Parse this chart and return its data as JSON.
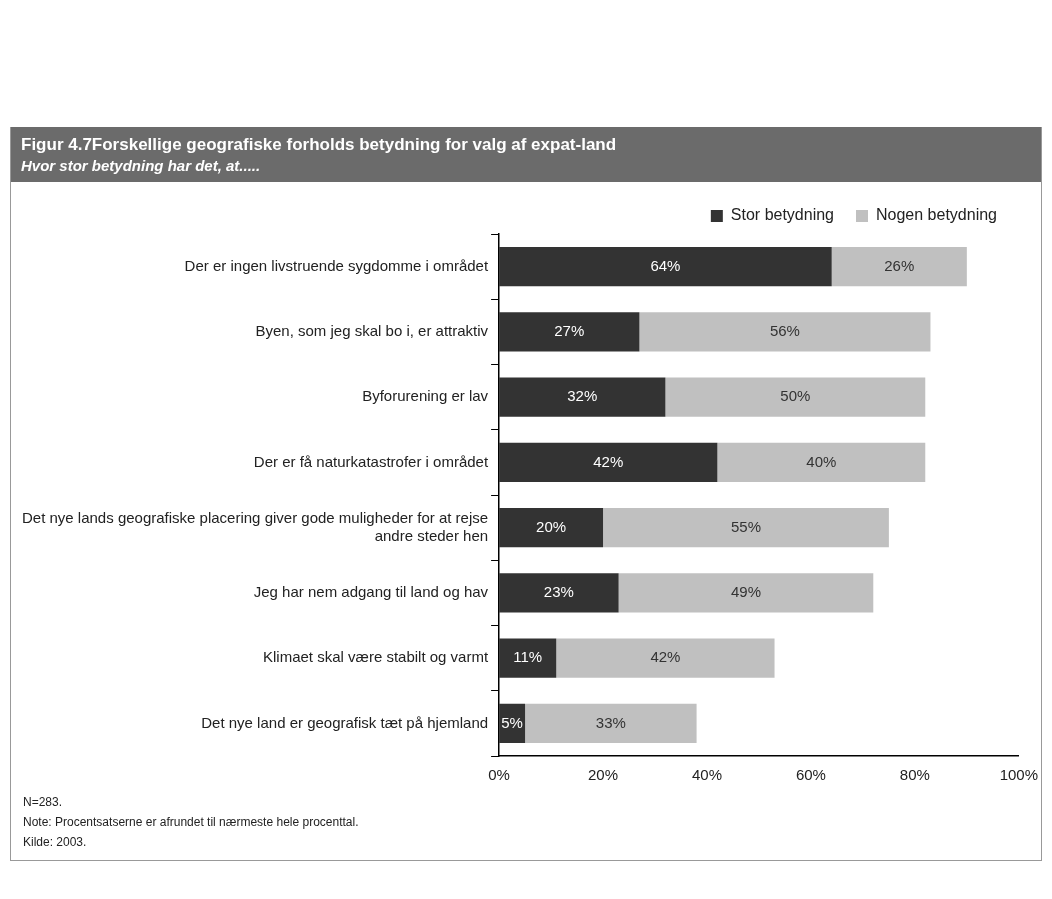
{
  "chart_data": {
    "type": "bar",
    "orientation": "horizontal",
    "stacked": true,
    "title": "Figur 4.7Forskellige geografiske forholds betydning for valg af expat-land",
    "subtitle": "Hvor stor betydning har det, at.....",
    "categories": [
      "Der er ingen livstruende sygdomme i området",
      "Byen, som jeg skal bo i, er attraktiv",
      "Byforurening er lav",
      "Der er få naturkatastrofer i området",
      "Det nye lands geografiske placering giver gode muligheder for at rejse andre steder hen",
      "Jeg har nem adgang til land og hav",
      "Klimaet skal være stabilt og varmt",
      "Det nye land er geografisk tæt på hjemland"
    ],
    "series": [
      {
        "name": "Stor betydning",
        "color": "#333333",
        "values": [
          64,
          27,
          32,
          42,
          20,
          23,
          11,
          5
        ],
        "value_labels": [
          "64%",
          "27%",
          "32%",
          "42%",
          "20%",
          "23%",
          "11%",
          "5%"
        ]
      },
      {
        "name": "Nogen betydning",
        "color": "#c0c0c0",
        "values": [
          26,
          56,
          50,
          40,
          55,
          49,
          42,
          33
        ],
        "value_labels": [
          "26%",
          "56%",
          "50%",
          "40%",
          "55%",
          "49%",
          "42%",
          "33%"
        ]
      }
    ],
    "xlim": [
      0,
      100
    ],
    "xticks": [
      {
        "value": 0,
        "label": "0%"
      },
      {
        "value": 20,
        "label": "20%"
      },
      {
        "value": 40,
        "label": "40%"
      },
      {
        "value": 60,
        "label": "60%"
      },
      {
        "value": 80,
        "label": "80%"
      },
      {
        "value": 100,
        "label": "100%"
      }
    ],
    "grid": false,
    "legend": "top right",
    "annotations": [
      "N=283.",
      "Note: Procentsatserne er afrundet til nærmeste hele procenttal.",
      "Kilde: 2003."
    ]
  }
}
